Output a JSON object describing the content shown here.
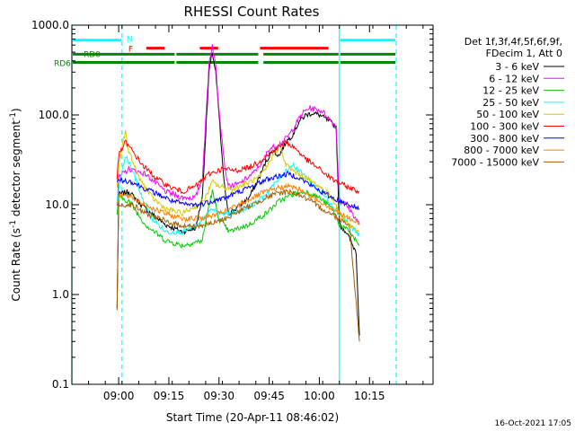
{
  "chart_data": {
    "type": "line",
    "title": "RHESSI Count Rates",
    "xlabel": "Start Time (20-Apr-11 08:46:02)",
    "ylabel_main": "Count Rate (s",
    "ylabel_sup1": "-1",
    "ylabel_mid": " detector segment",
    "ylabel_sup2": "-1",
    "ylabel_end": ")",
    "footer": "16-Oct-2021 17:05",
    "x_unit": "minutes since 08:46:02",
    "xlim": [
      0,
      108
    ],
    "ylim": [
      0.1,
      1000
    ],
    "y_scale": "log",
    "x_ticks": [
      {
        "x": 14,
        "label": "09:00"
      },
      {
        "x": 29,
        "label": "09:15"
      },
      {
        "x": 44,
        "label": "09:30"
      },
      {
        "x": 59,
        "label": "09:45"
      },
      {
        "x": 74,
        "label": "10:00"
      },
      {
        "x": 89,
        "label": "10:15"
      }
    ],
    "y_ticks": [
      {
        "y": 0.1,
        "label": "0.1"
      },
      {
        "y": 1,
        "label": "1.0"
      },
      {
        "y": 10,
        "label": "10.0"
      },
      {
        "y": 100,
        "label": "100.0"
      },
      {
        "y": 1000,
        "label": "1000.0"
      }
    ],
    "legend_header": [
      "Det 1f,3f,4f,5f,6f,9f,",
      "FDecim 1, Att 0"
    ],
    "legend_placement": "right",
    "series": [
      {
        "name": "3 - 6 keV",
        "color": "#000000",
        "points": [
          [
            13.5,
            0.7
          ],
          [
            14,
            13
          ],
          [
            17,
            14
          ],
          [
            22,
            9
          ],
          [
            28,
            6
          ],
          [
            33,
            5
          ],
          [
            37,
            5.5
          ],
          [
            39,
            12
          ],
          [
            40,
            60
          ],
          [
            41,
            300
          ],
          [
            42,
            500
          ],
          [
            43,
            300
          ],
          [
            44,
            100
          ],
          [
            45,
            30
          ],
          [
            46,
            12
          ],
          [
            47,
            8
          ],
          [
            49,
            9
          ],
          [
            53,
            12
          ],
          [
            56,
            20
          ],
          [
            58,
            30
          ],
          [
            60,
            40
          ],
          [
            62,
            35
          ],
          [
            64,
            50
          ],
          [
            66,
            60
          ],
          [
            68,
            85
          ],
          [
            70,
            100
          ],
          [
            72,
            105
          ],
          [
            74,
            100
          ],
          [
            76,
            90
          ],
          [
            79,
            75
          ],
          [
            80,
            6
          ],
          [
            82,
            5
          ],
          [
            84,
            3.5
          ],
          [
            85,
            3
          ],
          [
            86,
            0.35
          ]
        ]
      },
      {
        "name": "6 - 12 keV",
        "color": "#ff00ff",
        "points": [
          [
            13.5,
            10
          ],
          [
            14,
            20
          ],
          [
            17,
            25
          ],
          [
            22,
            22
          ],
          [
            28,
            14
          ],
          [
            33,
            12
          ],
          [
            37,
            12
          ],
          [
            39,
            20
          ],
          [
            40,
            80
          ],
          [
            41,
            380
          ],
          [
            42,
            600
          ],
          [
            43,
            350
          ],
          [
            44,
            120
          ],
          [
            45,
            50
          ],
          [
            46,
            22
          ],
          [
            47,
            16
          ],
          [
            50,
            17
          ],
          [
            54,
            22
          ],
          [
            57,
            30
          ],
          [
            59,
            42
          ],
          [
            61,
            45
          ],
          [
            63,
            50
          ],
          [
            65,
            60
          ],
          [
            67,
            80
          ],
          [
            69,
            105
          ],
          [
            71,
            120
          ],
          [
            73,
            115
          ],
          [
            75,
            110
          ],
          [
            77,
            90
          ],
          [
            79,
            75
          ],
          [
            80,
            12
          ],
          [
            83,
            9
          ],
          [
            86,
            6
          ]
        ]
      },
      {
        "name": "12 - 25 keV",
        "color": "#00cc00",
        "points": [
          [
            13.5,
            8
          ],
          [
            14,
            12
          ],
          [
            17,
            11
          ],
          [
            22,
            6
          ],
          [
            28,
            4
          ],
          [
            33,
            3.5
          ],
          [
            39,
            4
          ],
          [
            41,
            10
          ],
          [
            42,
            14
          ],
          [
            44,
            7
          ],
          [
            47,
            5
          ],
          [
            53,
            6
          ],
          [
            58,
            8
          ],
          [
            62,
            11
          ],
          [
            66,
            13
          ],
          [
            70,
            14
          ],
          [
            74,
            12
          ],
          [
            78,
            9
          ],
          [
            80,
            6
          ],
          [
            83,
            5
          ],
          [
            86,
            3.5
          ]
        ]
      },
      {
        "name": "25 - 50 keV",
        "color": "#00ffff",
        "points": [
          [
            13.5,
            10
          ],
          [
            14,
            15
          ],
          [
            16,
            35
          ],
          [
            18,
            25
          ],
          [
            21,
            12
          ],
          [
            24,
            7
          ],
          [
            28,
            5
          ],
          [
            33,
            5
          ],
          [
            38,
            6
          ],
          [
            42,
            9
          ],
          [
            44,
            8
          ],
          [
            48,
            8
          ],
          [
            52,
            9
          ],
          [
            56,
            11
          ],
          [
            60,
            16
          ],
          [
            64,
            24
          ],
          [
            66,
            28
          ],
          [
            68,
            24
          ],
          [
            72,
            17
          ],
          [
            76,
            12
          ],
          [
            80,
            8
          ],
          [
            83,
            6
          ],
          [
            86,
            4.5
          ]
        ]
      },
      {
        "name": "50 - 100 keV",
        "color": "#d8c800",
        "points": [
          [
            13.5,
            15
          ],
          [
            14,
            25
          ],
          [
            15,
            45
          ],
          [
            16,
            65
          ],
          [
            17,
            40
          ],
          [
            20,
            20
          ],
          [
            24,
            12
          ],
          [
            28,
            9
          ],
          [
            33,
            8
          ],
          [
            38,
            10
          ],
          [
            40,
            12
          ],
          [
            42,
            18
          ],
          [
            44,
            16
          ],
          [
            48,
            15
          ],
          [
            52,
            17
          ],
          [
            56,
            20
          ],
          [
            58,
            25
          ],
          [
            60,
            35
          ],
          [
            62,
            45
          ],
          [
            64,
            28
          ],
          [
            66,
            24
          ],
          [
            70,
            20
          ],
          [
            74,
            16
          ],
          [
            78,
            12
          ],
          [
            80,
            8
          ],
          [
            83,
            6
          ],
          [
            86,
            5
          ]
        ]
      },
      {
        "name": "100 - 300 keV",
        "color": "#ff0000",
        "points": [
          [
            13.5,
            20
          ],
          [
            14,
            35
          ],
          [
            16,
            50
          ],
          [
            18,
            40
          ],
          [
            21,
            28
          ],
          [
            25,
            20
          ],
          [
            29,
            16
          ],
          [
            33,
            14
          ],
          [
            37,
            16
          ],
          [
            41,
            22
          ],
          [
            45,
            25
          ],
          [
            49,
            24
          ],
          [
            53,
            26
          ],
          [
            57,
            32
          ],
          [
            61,
            42
          ],
          [
            64,
            50
          ],
          [
            67,
            42
          ],
          [
            70,
            32
          ],
          [
            74,
            25
          ],
          [
            78,
            19
          ],
          [
            82,
            16
          ],
          [
            86,
            14
          ]
        ]
      },
      {
        "name": "300 - 800 keV",
        "color": "#0000ff",
        "points": [
          [
            13.5,
            17
          ],
          [
            14,
            19
          ],
          [
            18,
            18
          ],
          [
            22,
            15
          ],
          [
            26,
            13
          ],
          [
            30,
            11
          ],
          [
            34,
            10
          ],
          [
            38,
            10
          ],
          [
            42,
            11
          ],
          [
            46,
            12
          ],
          [
            50,
            14
          ],
          [
            54,
            16
          ],
          [
            58,
            19
          ],
          [
            62,
            21
          ],
          [
            65,
            22
          ],
          [
            68,
            20
          ],
          [
            72,
            16
          ],
          [
            76,
            13
          ],
          [
            80,
            11
          ],
          [
            83,
            10
          ],
          [
            86,
            9
          ]
        ]
      },
      {
        "name": "800 - 7000 keV",
        "color": "#ff8000",
        "points": [
          [
            13.5,
            11
          ],
          [
            14,
            13
          ],
          [
            18,
            12
          ],
          [
            22,
            10
          ],
          [
            26,
            8.5
          ],
          [
            30,
            7.5
          ],
          [
            34,
            7
          ],
          [
            38,
            7
          ],
          [
            42,
            7.5
          ],
          [
            46,
            8.5
          ],
          [
            50,
            10
          ],
          [
            54,
            12
          ],
          [
            58,
            14
          ],
          [
            62,
            15.5
          ],
          [
            65,
            16
          ],
          [
            68,
            15
          ],
          [
            72,
            12
          ],
          [
            76,
            10
          ],
          [
            80,
            8
          ],
          [
            83,
            7
          ],
          [
            86,
            6
          ]
        ]
      },
      {
        "name": "7000 - 15000 keV",
        "color": "#a06000",
        "points": [
          [
            13.5,
            0.7
          ],
          [
            14,
            10
          ],
          [
            18,
            10
          ],
          [
            22,
            8
          ],
          [
            26,
            7
          ],
          [
            30,
            6.2
          ],
          [
            34,
            5.8
          ],
          [
            38,
            5.8
          ],
          [
            42,
            6.2
          ],
          [
            46,
            7
          ],
          [
            50,
            8.5
          ],
          [
            54,
            10
          ],
          [
            58,
            12
          ],
          [
            62,
            13.5
          ],
          [
            65,
            14
          ],
          [
            68,
            13
          ],
          [
            72,
            10.5
          ],
          [
            76,
            8.5
          ],
          [
            80,
            7
          ],
          [
            83,
            6
          ],
          [
            86,
            0.3
          ]
        ]
      }
    ],
    "vlines_solid": [
      0,
      80
    ],
    "vlines_dashed": [
      15,
      97
    ],
    "vline_color": "#00ffff",
    "bars": [
      {
        "label": "N",
        "color": "#00ffff",
        "segments": [
          [
            0,
            15
          ],
          [
            80,
            97
          ]
        ],
        "level": 680
      },
      {
        "label": "F",
        "color": "#ff0000",
        "segments": [
          [
            22,
            28
          ],
          [
            38,
            44
          ],
          [
            56,
            77
          ]
        ],
        "level": 555
      },
      {
        "label": "RD0",
        "color": "#008800",
        "segments": [
          [
            0,
            31
          ],
          [
            31,
            56
          ],
          [
            57,
            80
          ],
          [
            80,
            97
          ]
        ],
        "level": 475
      },
      {
        "label": "RD6",
        "color": "#008800",
        "segments": [
          [
            0,
            31
          ],
          [
            31,
            56
          ],
          [
            57,
            80
          ],
          [
            80,
            97
          ]
        ],
        "level": 385
      }
    ]
  }
}
